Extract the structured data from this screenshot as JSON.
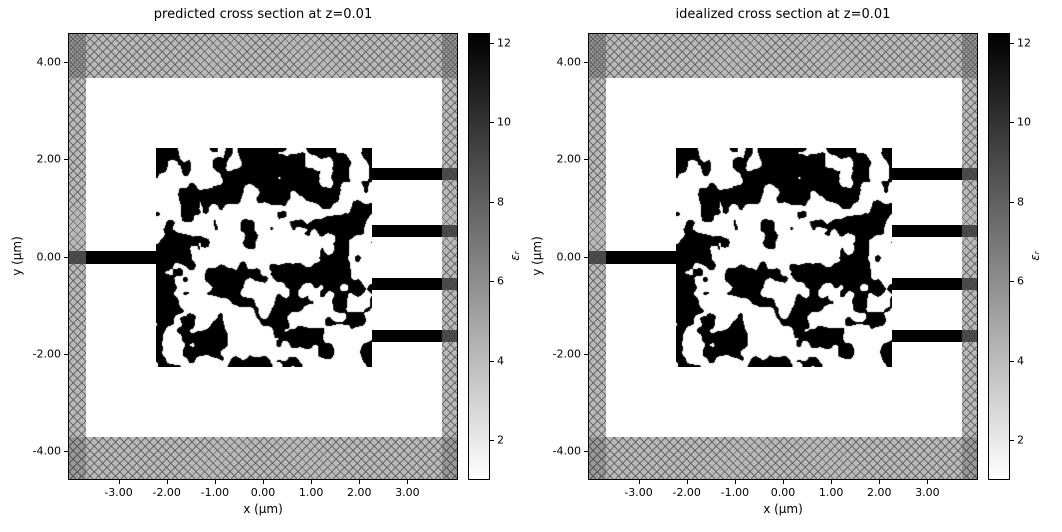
{
  "chart_data": [
    {
      "type": "heatmap",
      "title": "predicted cross section at z=0.01",
      "xlabel": "x (μm)",
      "ylabel": "y (μm)",
      "xlim": [
        -4.05,
        4.05
      ],
      "ylim": [
        -4.6,
        4.6
      ],
      "xticks": [
        -3,
        -2,
        -1,
        0,
        1,
        2,
        3
      ],
      "xticklabels": [
        "-3.00",
        "-2.00",
        "-1.00",
        "0.00",
        "1.00",
        "2.00",
        "3.00"
      ],
      "yticks": [
        4,
        2,
        0,
        -2,
        -4
      ],
      "yticklabels": [
        "4.00",
        "2.00",
        "0.00",
        "-2.00",
        "-4.00"
      ],
      "colorbar": {
        "label": "εᵣ",
        "ticks": [
          12,
          10,
          8,
          6,
          4,
          2
        ],
        "ticklabels": [
          "12",
          "10",
          "8",
          "6",
          "4",
          "2"
        ],
        "vmin": 1.0,
        "vmax": 12.25,
        "colormap": "binary (low=white, high=black)"
      },
      "structure": {
        "epsilon_low": 1.0,
        "epsilon_high": 12.25,
        "design_region": {
          "x": [
            -2.25,
            2.25
          ],
          "y": [
            -2.25,
            2.25
          ],
          "fill": "random binary speckle (εᵣ = 1 or 12.25)"
        },
        "input_waveguide": {
          "x": [
            -4.05,
            -2.25
          ],
          "y_center": 0.0,
          "width": 0.25
        },
        "output_waveguides": [
          {
            "x": [
              2.25,
              4.05
            ],
            "y_center": 1.72,
            "width": 0.25
          },
          {
            "x": [
              2.25,
              4.05
            ],
            "y_center": 0.55,
            "width": 0.25
          },
          {
            "x": [
              2.25,
              4.05
            ],
            "y_center": -0.55,
            "width": 0.25
          },
          {
            "x": [
              2.25,
              4.05
            ],
            "y_center": -1.62,
            "width": 0.25
          }
        ],
        "pml": {
          "x_bands": [
            [
              -4.05,
              -3.7
            ],
            [
              3.7,
              4.05
            ]
          ],
          "y_bands": [
            [
              -4.6,
              -3.7
            ],
            [
              3.7,
              4.6
            ]
          ],
          "style": "gray x-hatched absorbing boundary"
        }
      }
    },
    {
      "type": "heatmap",
      "title": "idealized cross section at z=0.01",
      "xlabel": "x (μm)",
      "ylabel": "y (μm)",
      "xlim": [
        -4.05,
        4.05
      ],
      "ylim": [
        -4.6,
        4.6
      ],
      "xticks": [
        -3,
        -2,
        -1,
        0,
        1,
        2,
        3
      ],
      "xticklabels": [
        "-3.00",
        "-2.00",
        "-1.00",
        "0.00",
        "1.00",
        "2.00",
        "3.00"
      ],
      "yticks": [
        4,
        2,
        0,
        -2,
        -4
      ],
      "yticklabels": [
        "4.00",
        "2.00",
        "0.00",
        "-2.00",
        "-4.00"
      ],
      "colorbar": {
        "label": "εᵣ",
        "ticks": [
          12,
          10,
          8,
          6,
          4,
          2
        ],
        "ticklabels": [
          "12",
          "10",
          "8",
          "6",
          "4",
          "2"
        ],
        "vmin": 1.0,
        "vmax": 12.25,
        "colormap": "binary (low=white, high=black)"
      },
      "structure": {
        "epsilon_low": 1.0,
        "epsilon_high": 12.25,
        "design_region": {
          "x": [
            -2.25,
            2.25
          ],
          "y": [
            -2.25,
            2.25
          ],
          "fill": "random binary speckle (εᵣ = 1 or 12.25)"
        },
        "input_waveguide": {
          "x": [
            -4.05,
            -2.25
          ],
          "y_center": 0.0,
          "width": 0.25
        },
        "output_waveguides": [
          {
            "x": [
              2.25,
              4.05
            ],
            "y_center": 1.72,
            "width": 0.25
          },
          {
            "x": [
              2.25,
              4.05
            ],
            "y_center": 0.55,
            "width": 0.25
          },
          {
            "x": [
              2.25,
              4.05
            ],
            "y_center": -0.55,
            "width": 0.25
          },
          {
            "x": [
              2.25,
              4.05
            ],
            "y_center": -1.62,
            "width": 0.25
          }
        ],
        "pml": {
          "x_bands": [
            [
              -4.05,
              -3.7
            ],
            [
              3.7,
              4.05
            ]
          ],
          "y_bands": [
            [
              -4.6,
              -3.7
            ],
            [
              3.7,
              4.6
            ]
          ],
          "style": "gray x-hatched absorbing boundary"
        }
      }
    }
  ],
  "colors": {
    "material": "#000000",
    "background": "#ffffff",
    "pml_gray": "#9e9e9e",
    "text": "#000000"
  }
}
